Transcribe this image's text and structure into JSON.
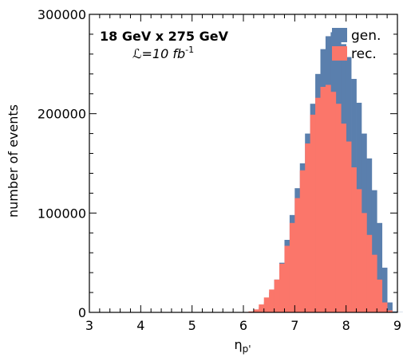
{
  "chart_data": {
    "type": "bar",
    "histogram": true,
    "xlabel": "η",
    "xlabel_sub": "p'",
    "ylabel": "number of events",
    "xlim": [
      3,
      9
    ],
    "ylim": [
      0,
      300000
    ],
    "xticks": [
      "3",
      "4",
      "5",
      "6",
      "7",
      "8",
      "9"
    ],
    "yticks": [
      "0",
      "100000",
      "200000",
      "300000"
    ],
    "grid": false,
    "legend_position": "top-right",
    "annotation": {
      "line1": "18 GeV x 275 GeV",
      "line2_prefix": "ℒ=10 fb",
      "line2_sup": "-1"
    },
    "bin_width": 0.1,
    "bin_edges_start": 6.1,
    "series": [
      {
        "name": "gen.",
        "color": "#5a7fad",
        "values": [
          500,
          2000,
          5000,
          10000,
          20000,
          33000,
          50000,
          73000,
          98000,
          125000,
          150000,
          180000,
          210000,
          240000,
          265000,
          278000,
          282000,
          279000,
          270000,
          257000,
          235000,
          211000,
          180000,
          155000,
          123000,
          90000,
          45000,
          10000,
          1000,
          200
        ]
      },
      {
        "name": "rec.",
        "color": "#fb766a",
        "values": [
          1000,
          3000,
          8000,
          15000,
          23000,
          33000,
          49000,
          67000,
          90000,
          115000,
          143000,
          170000,
          199000,
          216000,
          227000,
          229000,
          222000,
          210000,
          190000,
          172000,
          146000,
          124000,
          100000,
          78000,
          58000,
          33000,
          10000,
          2000,
          200,
          0
        ]
      }
    ]
  }
}
